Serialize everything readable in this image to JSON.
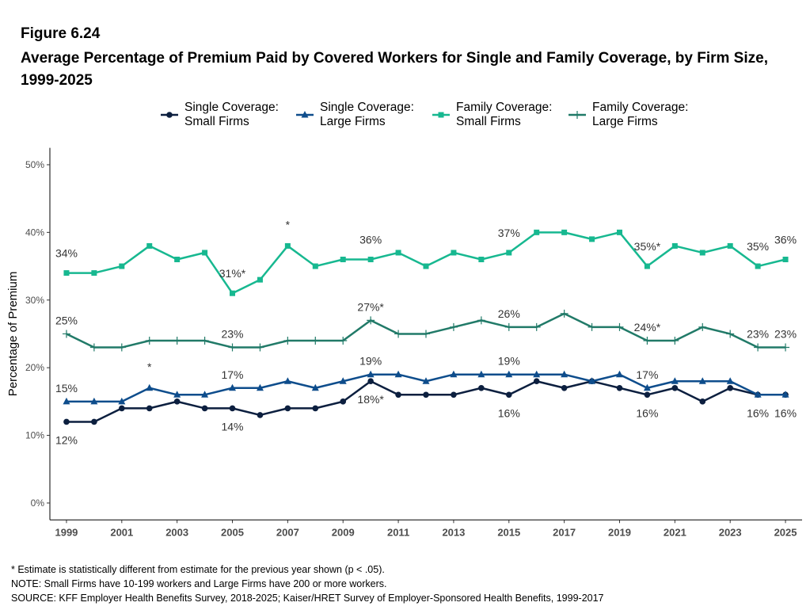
{
  "chart_data": {
    "type": "line",
    "figure_label": "Figure 6.24",
    "title": "Average Percentage of Premium Paid by Covered Workers for Single and Family Coverage, by Firm Size, 1999-2025",
    "y_label": "Percentage of Premium",
    "x": [
      1999,
      2000,
      2001,
      2002,
      2003,
      2004,
      2005,
      2006,
      2007,
      2008,
      2009,
      2010,
      2011,
      2012,
      2013,
      2014,
      2015,
      2016,
      2017,
      2018,
      2019,
      2020,
      2021,
      2022,
      2023,
      2024,
      2025
    ],
    "xlim": [
      1998.4,
      2025.6
    ],
    "xticks": [
      1999,
      2001,
      2003,
      2005,
      2007,
      2009,
      2011,
      2013,
      2015,
      2017,
      2019,
      2021,
      2023,
      2025
    ],
    "ylim": [
      -2.5,
      52.5
    ],
    "yticks": [
      {
        "value": 0,
        "label": "0%"
      },
      {
        "value": 10,
        "label": "10%"
      },
      {
        "value": 20,
        "label": "20%"
      },
      {
        "value": 30,
        "label": "30%"
      },
      {
        "value": 40,
        "label": "40%"
      },
      {
        "value": 50,
        "label": "50%"
      }
    ],
    "grid": false,
    "series": [
      {
        "name": "Single Coverage:\n Small Firms",
        "color": "#0c1f3f",
        "marker": "circle",
        "label_side": "below",
        "values": [
          12,
          12,
          14,
          14,
          15,
          14,
          14,
          13,
          14,
          14,
          15,
          18,
          16,
          16,
          16,
          17,
          16,
          18,
          17,
          18,
          17,
          16,
          17,
          15,
          17,
          16,
          16
        ],
        "value_labels": [
          "12%",
          null,
          null,
          null,
          null,
          null,
          "14%",
          null,
          null,
          null,
          null,
          "18%*",
          null,
          null,
          null,
          null,
          "16%",
          null,
          null,
          null,
          null,
          "16%",
          null,
          null,
          null,
          "16%",
          "16%"
        ]
      },
      {
        "name": "Single Coverage:\n Large Firms",
        "color": "#0e4d8c",
        "marker": "triangle",
        "label_side": "above",
        "values": [
          15,
          15,
          15,
          17,
          16,
          16,
          17,
          17,
          18,
          17,
          18,
          19,
          19,
          18,
          19,
          19,
          19,
          19,
          19,
          18,
          19,
          17,
          18,
          18,
          18,
          16,
          16
        ],
        "value_labels": [
          "15%",
          null,
          null,
          null,
          null,
          null,
          "17%",
          null,
          null,
          null,
          null,
          "19%",
          null,
          null,
          null,
          null,
          "19%",
          null,
          null,
          null,
          null,
          "17%",
          null,
          null,
          null,
          null,
          null
        ]
      },
      {
        "name": "Family Coverage:\n Small Firms",
        "color": "#17b890",
        "marker": "square",
        "label_side": "above",
        "values": [
          34,
          34,
          35,
          38,
          36,
          37,
          31,
          33,
          38,
          35,
          36,
          36,
          37,
          35,
          37,
          36,
          37,
          40,
          40,
          39,
          40,
          35,
          38,
          37,
          38,
          35,
          36
        ],
        "value_labels": [
          "34%",
          null,
          null,
          null,
          null,
          null,
          "31%*",
          null,
          null,
          null,
          null,
          "36%",
          null,
          null,
          null,
          null,
          "37%",
          null,
          null,
          null,
          null,
          "35%*",
          null,
          null,
          null,
          "35%",
          "36%"
        ]
      },
      {
        "name": "Family Coverage:\n Large Firms",
        "color": "#217a68",
        "marker": "plus",
        "label_side": "above",
        "values": [
          25,
          23,
          23,
          24,
          24,
          24,
          23,
          23,
          24,
          24,
          24,
          27,
          25,
          25,
          26,
          27,
          26,
          26,
          28,
          26,
          26,
          24,
          24,
          26,
          25,
          23,
          23
        ],
        "value_labels": [
          "25%",
          null,
          null,
          null,
          null,
          null,
          "23%",
          null,
          null,
          null,
          null,
          "27%*",
          null,
          null,
          null,
          null,
          "26%",
          null,
          null,
          null,
          null,
          "24%*",
          null,
          null,
          null,
          "23%",
          "23%"
        ]
      }
    ],
    "annotations": [
      {
        "text": "*",
        "x": 2002,
        "y": 17
      },
      {
        "text": "*",
        "x": 2007,
        "y": 38
      }
    ],
    "notes": [
      "* Estimate is statistically different from estimate for the previous year shown (p < .05).",
      "NOTE: Small Firms have 10-199 workers and Large Firms have 200 or more workers.",
      "SOURCE: KFF Employer Health Benefits Survey, 2018-2025; Kaiser/HRET Survey of Employer-Sponsored Health Benefits, 1999-2017"
    ]
  }
}
